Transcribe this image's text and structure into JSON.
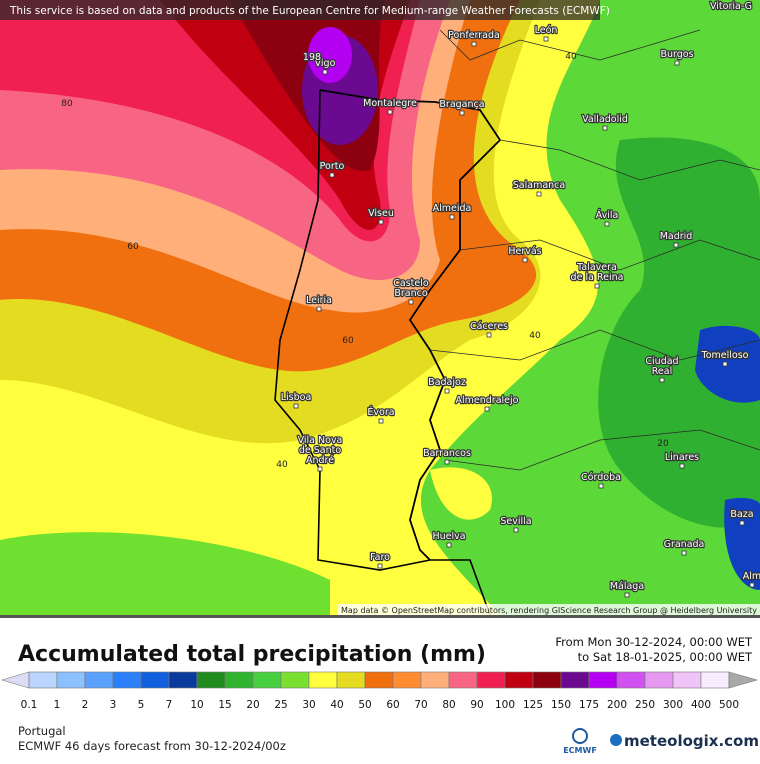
{
  "banner": "This service is based on data and products of the European Centre for Medium-range Weather Forecasts (ECMWF)",
  "corner_label": "Vitoria-G",
  "cities": [
    {
      "lines": [
        "Ponferrada"
      ]
    },
    {
      "lines": [
        "León"
      ]
    },
    {
      "lines": [
        "Vigo"
      ]
    },
    {
      "lines": [
        "Montalegre"
      ]
    },
    {
      "lines": [
        "Bragança"
      ]
    },
    {
      "lines": [
        "Burgos"
      ]
    },
    {
      "lines": [
        "Valladolid"
      ]
    },
    {
      "lines": [
        "Porto"
      ]
    },
    {
      "lines": [
        "Salamanca"
      ]
    },
    {
      "lines": [
        "Viseu"
      ]
    },
    {
      "lines": [
        "Almeida"
      ]
    },
    {
      "lines": [
        "Ávila"
      ]
    },
    {
      "lines": [
        "Madrid"
      ]
    },
    {
      "lines": [
        "Hervás"
      ]
    },
    {
      "lines": [
        "Talavera",
        "de la Reina"
      ]
    },
    {
      "lines": [
        "Castelo",
        "Branco"
      ]
    },
    {
      "lines": [
        "Leiria"
      ]
    },
    {
      "lines": [
        "Cáceres"
      ]
    },
    {
      "lines": [
        "Ciudad",
        "Real"
      ]
    },
    {
      "lines": [
        "Tomelloso"
      ]
    },
    {
      "lines": [
        "Badajoz"
      ]
    },
    {
      "lines": [
        "Lisboa"
      ]
    },
    {
      "lines": [
        "Almendralejo"
      ]
    },
    {
      "lines": [
        "Évora"
      ]
    },
    {
      "lines": [
        "Vila Nova",
        "de Santo",
        "André"
      ]
    },
    {
      "lines": [
        "Barrancos"
      ]
    },
    {
      "lines": [
        "Linares"
      ]
    },
    {
      "lines": [
        "Córdoba"
      ]
    },
    {
      "lines": [
        "Baza"
      ]
    },
    {
      "lines": [
        "Sevilla"
      ]
    },
    {
      "lines": [
        "Huelva"
      ]
    },
    {
      "lines": [
        "Granada"
      ]
    },
    {
      "lines": [
        "Faro"
      ]
    },
    {
      "lines": [
        "Málaga"
      ]
    },
    {
      "lines": [
        "Alm"
      ]
    }
  ],
  "contour_labels": [
    "198",
    "80",
    "60",
    "40",
    "60",
    "40",
    "40",
    "20"
  ],
  "attribution": "Map data © OpenStreetMap contributors, rendering GIScience Research Group @ Heidelberg University",
  "legend": {
    "title": "Accumulated total precipitation (mm)",
    "from": "From Mon 30-12-2024, 00:00 WET",
    "to": "to Sat 18-01-2025, 00:00 WET",
    "colors": [
      "#dcdcf4",
      "#b8d4ff",
      "#8cc0ff",
      "#5aa0ff",
      "#2a80f8",
      "#1060e0",
      "#0a3a9c",
      "#208c20",
      "#30b430",
      "#48d040",
      "#7ae030",
      "#ffff40",
      "#e4dc20",
      "#f07010",
      "#ff8c30",
      "#ffb07a",
      "#f86484",
      "#f02050",
      "#c00010",
      "#8c0010",
      "#6a0a90",
      "#b400f0",
      "#d050f0",
      "#e498f0",
      "#f0c4f8",
      "#f8ecff",
      "#a8a8a8"
    ],
    "labels": [
      "0.1",
      "1",
      "2",
      "3",
      "5",
      "7",
      "10",
      "15",
      "20",
      "25",
      "30",
      "40",
      "50",
      "60",
      "70",
      "80",
      "90",
      "100",
      "125",
      "150",
      "175",
      "200",
      "250",
      "300",
      "400",
      "500"
    ]
  },
  "region": "Portugal",
  "forecast": "ECMWF 46 days forecast from  30-12-2024/00z",
  "logos": [
    "ECMWF",
    "meteologix.com"
  ]
}
